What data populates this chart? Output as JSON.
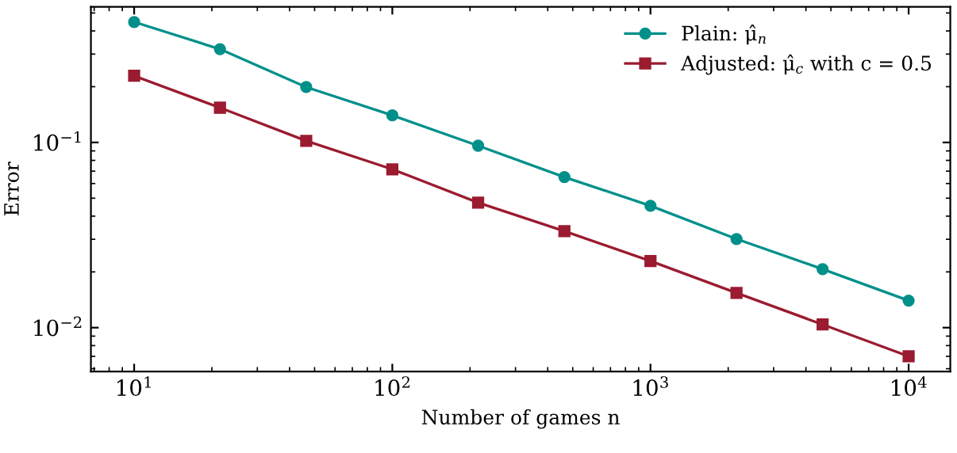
{
  "chart_data": {
    "type": "line",
    "xlabel": "Number of games n",
    "ylabel": "Error",
    "log": "xy",
    "xlim": [
      6.8,
      14500
    ],
    "ylim": [
      0.0058,
      0.54
    ],
    "xticks": [
      {
        "value": 10,
        "label": "10$^{1}$"
      },
      {
        "value": 100,
        "label": "10$^{2}$"
      },
      {
        "value": 1000,
        "label": "10$^{3}$"
      },
      {
        "value": 10000,
        "label": "10$^{4}$"
      }
    ],
    "yticks": [
      {
        "value": 0.01,
        "label": "10$^{−2}$"
      },
      {
        "value": 0.1,
        "label": "10$^{−1}$"
      }
    ],
    "x": [
      10,
      21.5,
      46.4,
      100,
      215,
      464,
      1000,
      2154,
      4642,
      10000
    ],
    "series": [
      {
        "name": "Plain: μ̂$_{n}$",
        "color": "#00908a",
        "marker": "circle",
        "values": [
          0.447,
          0.319,
          0.199,
          0.14,
          0.096,
          0.065,
          0.0455,
          0.0301,
          0.0207,
          0.014
        ]
      },
      {
        "name": "Adjusted: μ̂$_{c}$ with c = 0.5",
        "color": "#9b1b30",
        "marker": "square",
        "values": [
          0.229,
          0.154,
          0.102,
          0.0716,
          0.0473,
          0.0332,
          0.0229,
          0.0154,
          0.0104,
          0.007
        ]
      }
    ],
    "grid": false,
    "legend": "top right",
    "line_style": "solid"
  }
}
